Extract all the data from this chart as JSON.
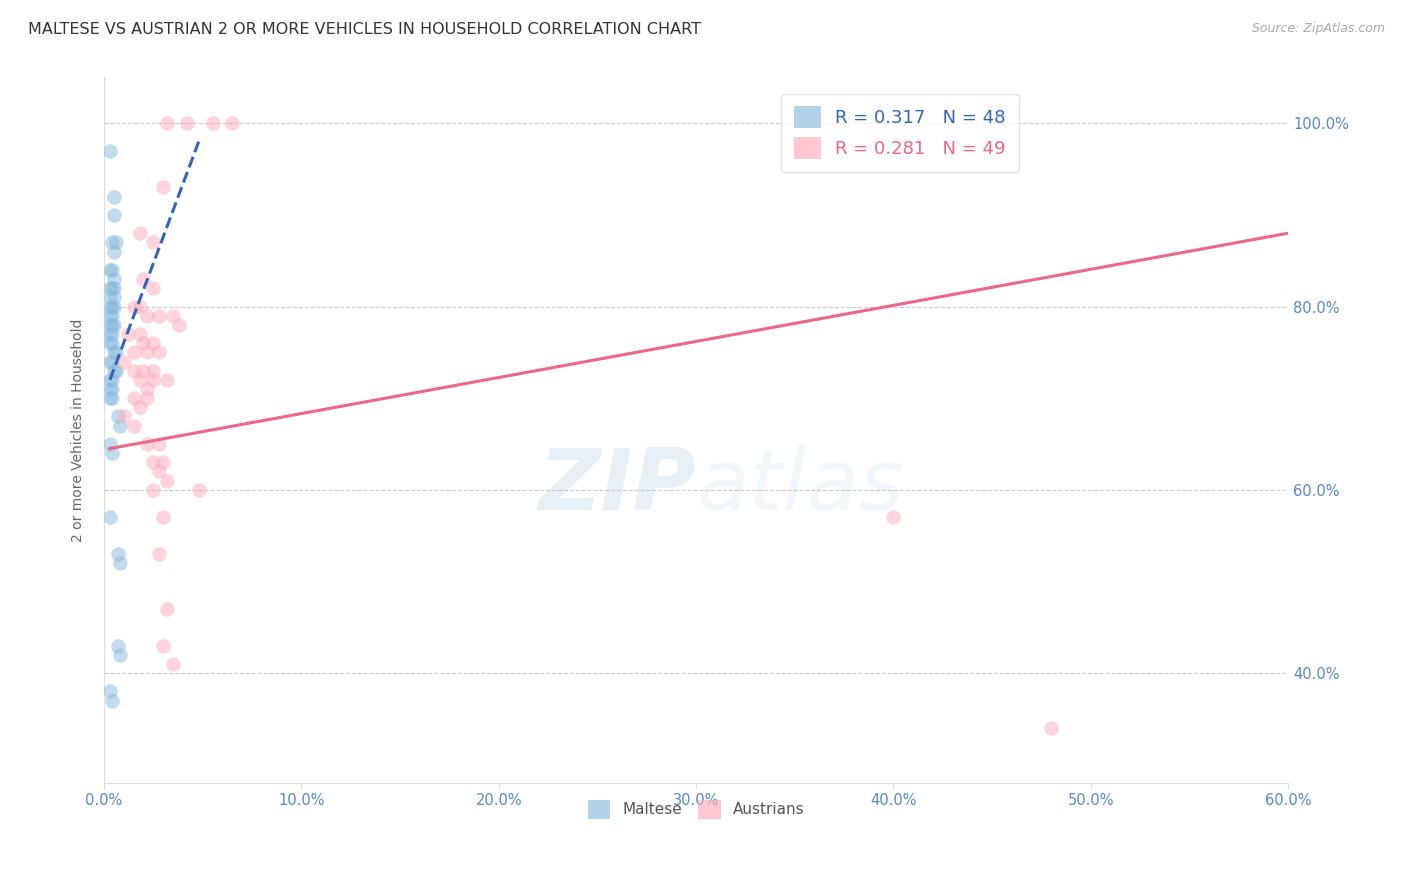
{
  "title": "MALTESE VS AUSTRIAN 2 OR MORE VEHICLES IN HOUSEHOLD CORRELATION CHART",
  "source": "Source: ZipAtlas.com",
  "ylabel": "2 or more Vehicles in Household",
  "xlim": [
    0.0,
    0.6
  ],
  "ylim": [
    0.28,
    1.05
  ],
  "xtick_labels": [
    "0.0%",
    "10.0%",
    "20.0%",
    "30.0%",
    "40.0%",
    "50.0%",
    "60.0%"
  ],
  "xtick_vals": [
    0.0,
    0.1,
    0.2,
    0.3,
    0.4,
    0.5,
    0.6
  ],
  "ytick_labels": [
    "100.0%",
    "80.0%",
    "60.0%",
    "40.0%"
  ],
  "ytick_vals": [
    1.0,
    0.8,
    0.6,
    0.4
  ],
  "maltese_scatter": [
    [
      0.003,
      0.97
    ],
    [
      0.005,
      0.92
    ],
    [
      0.005,
      0.9
    ],
    [
      0.004,
      0.87
    ],
    [
      0.005,
      0.86
    ],
    [
      0.006,
      0.87
    ],
    [
      0.003,
      0.84
    ],
    [
      0.004,
      0.84
    ],
    [
      0.005,
      0.83
    ],
    [
      0.003,
      0.82
    ],
    [
      0.004,
      0.82
    ],
    [
      0.005,
      0.82
    ],
    [
      0.003,
      0.81
    ],
    [
      0.005,
      0.81
    ],
    [
      0.003,
      0.8
    ],
    [
      0.004,
      0.8
    ],
    [
      0.005,
      0.8
    ],
    [
      0.003,
      0.79
    ],
    [
      0.004,
      0.79
    ],
    [
      0.003,
      0.78
    ],
    [
      0.004,
      0.78
    ],
    [
      0.005,
      0.78
    ],
    [
      0.003,
      0.77
    ],
    [
      0.004,
      0.77
    ],
    [
      0.003,
      0.76
    ],
    [
      0.004,
      0.76
    ],
    [
      0.005,
      0.75
    ],
    [
      0.006,
      0.75
    ],
    [
      0.003,
      0.74
    ],
    [
      0.004,
      0.74
    ],
    [
      0.005,
      0.73
    ],
    [
      0.006,
      0.73
    ],
    [
      0.003,
      0.72
    ],
    [
      0.004,
      0.72
    ],
    [
      0.003,
      0.71
    ],
    [
      0.004,
      0.71
    ],
    [
      0.003,
      0.7
    ],
    [
      0.004,
      0.7
    ],
    [
      0.007,
      0.68
    ],
    [
      0.008,
      0.67
    ],
    [
      0.003,
      0.65
    ],
    [
      0.004,
      0.64
    ],
    [
      0.003,
      0.57
    ],
    [
      0.007,
      0.53
    ],
    [
      0.008,
      0.52
    ],
    [
      0.007,
      0.43
    ],
    [
      0.008,
      0.42
    ],
    [
      0.003,
      0.38
    ],
    [
      0.004,
      0.37
    ]
  ],
  "austrian_scatter": [
    [
      0.032,
      1.0
    ],
    [
      0.042,
      1.0
    ],
    [
      0.055,
      1.0
    ],
    [
      0.065,
      1.0
    ],
    [
      0.03,
      0.93
    ],
    [
      0.018,
      0.88
    ],
    [
      0.025,
      0.87
    ],
    [
      0.02,
      0.83
    ],
    [
      0.025,
      0.82
    ],
    [
      0.015,
      0.8
    ],
    [
      0.018,
      0.8
    ],
    [
      0.022,
      0.79
    ],
    [
      0.028,
      0.79
    ],
    [
      0.035,
      0.79
    ],
    [
      0.038,
      0.78
    ],
    [
      0.012,
      0.77
    ],
    [
      0.018,
      0.77
    ],
    [
      0.02,
      0.76
    ],
    [
      0.025,
      0.76
    ],
    [
      0.015,
      0.75
    ],
    [
      0.022,
      0.75
    ],
    [
      0.028,
      0.75
    ],
    [
      0.01,
      0.74
    ],
    [
      0.015,
      0.73
    ],
    [
      0.02,
      0.73
    ],
    [
      0.025,
      0.73
    ],
    [
      0.018,
      0.72
    ],
    [
      0.025,
      0.72
    ],
    [
      0.032,
      0.72
    ],
    [
      0.022,
      0.71
    ],
    [
      0.015,
      0.7
    ],
    [
      0.022,
      0.7
    ],
    [
      0.018,
      0.69
    ],
    [
      0.01,
      0.68
    ],
    [
      0.015,
      0.67
    ],
    [
      0.022,
      0.65
    ],
    [
      0.028,
      0.65
    ],
    [
      0.025,
      0.63
    ],
    [
      0.03,
      0.63
    ],
    [
      0.028,
      0.62
    ],
    [
      0.032,
      0.61
    ],
    [
      0.025,
      0.6
    ],
    [
      0.03,
      0.57
    ],
    [
      0.028,
      0.53
    ],
    [
      0.032,
      0.47
    ],
    [
      0.03,
      0.43
    ],
    [
      0.035,
      0.41
    ],
    [
      0.048,
      0.6
    ],
    [
      0.4,
      0.57
    ],
    [
      0.48,
      0.34
    ]
  ],
  "maltese_line_x": [
    0.003,
    0.048
  ],
  "maltese_line_y": [
    0.72,
    0.98
  ],
  "austrian_line_x": [
    0.003,
    0.6
  ],
  "austrian_line_y": [
    0.645,
    0.88
  ],
  "blue_color": "#88bbdd",
  "pink_color": "#ffaabb",
  "blue_line_color": "#3366bb",
  "pink_line_color": "#ee6688",
  "watermark_zip": "ZIP",
  "watermark_atlas": "atlas",
  "title_fontsize": 11.5,
  "axis_label_fontsize": 10,
  "tick_fontsize": 10.5,
  "legend_fontsize": 13,
  "background_color": "#ffffff"
}
